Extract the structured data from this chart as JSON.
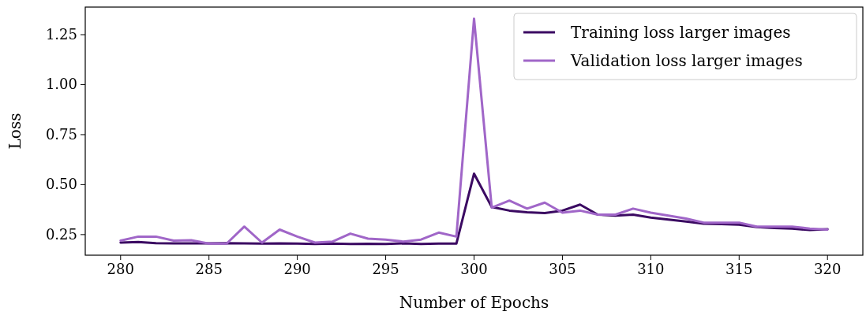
{
  "chart_data": {
    "type": "line",
    "xlabel": "Number of Epochs",
    "ylabel": "Loss",
    "x": [
      280,
      281,
      282,
      283,
      284,
      285,
      286,
      287,
      288,
      289,
      290,
      291,
      292,
      293,
      294,
      295,
      296,
      297,
      298,
      299,
      300,
      301,
      302,
      303,
      304,
      305,
      306,
      307,
      308,
      309,
      310,
      311,
      312,
      313,
      314,
      315,
      316,
      317,
      318,
      319,
      320
    ],
    "series": [
      {
        "name": "Training loss larger images",
        "color": "#3b0a62",
        "values": [
          0.21,
          0.213,
          0.207,
          0.206,
          0.206,
          0.206,
          0.207,
          0.206,
          0.205,
          0.206,
          0.205,
          0.203,
          0.205,
          0.203,
          0.204,
          0.203,
          0.206,
          0.203,
          0.205,
          0.205,
          0.555,
          0.388,
          0.37,
          0.362,
          0.358,
          0.37,
          0.4,
          0.35,
          0.345,
          0.35,
          0.335,
          0.325,
          0.315,
          0.305,
          0.303,
          0.3,
          0.288,
          0.283,
          0.28,
          0.273,
          0.277
        ]
      },
      {
        "name": "Validation loss larger images",
        "color": "#a066c8",
        "values": [
          0.22,
          0.24,
          0.24,
          0.22,
          0.222,
          0.205,
          0.205,
          0.29,
          0.21,
          0.275,
          0.24,
          0.21,
          0.215,
          0.255,
          0.23,
          0.225,
          0.215,
          0.225,
          0.26,
          0.24,
          1.33,
          0.385,
          0.42,
          0.38,
          0.41,
          0.36,
          0.37,
          0.35,
          0.35,
          0.38,
          0.36,
          0.345,
          0.33,
          0.31,
          0.31,
          0.31,
          0.29,
          0.29,
          0.29,
          0.28,
          0.275
        ]
      }
    ],
    "xlim": [
      278,
      322
    ],
    "ylim": [
      0.147,
      1.388
    ],
    "xticks": [
      280,
      285,
      290,
      295,
      300,
      305,
      310,
      315,
      320
    ],
    "yticks": [
      {
        "value": 0.25,
        "label": "0.25"
      },
      {
        "value": 0.5,
        "label": "0.50"
      },
      {
        "value": 0.75,
        "label": "0.75"
      },
      {
        "value": 1.0,
        "label": "1.00"
      },
      {
        "value": 1.25,
        "label": "1.25"
      }
    ],
    "legend": "top right",
    "grid": false,
    "marker": "none",
    "line_style": "solid"
  }
}
